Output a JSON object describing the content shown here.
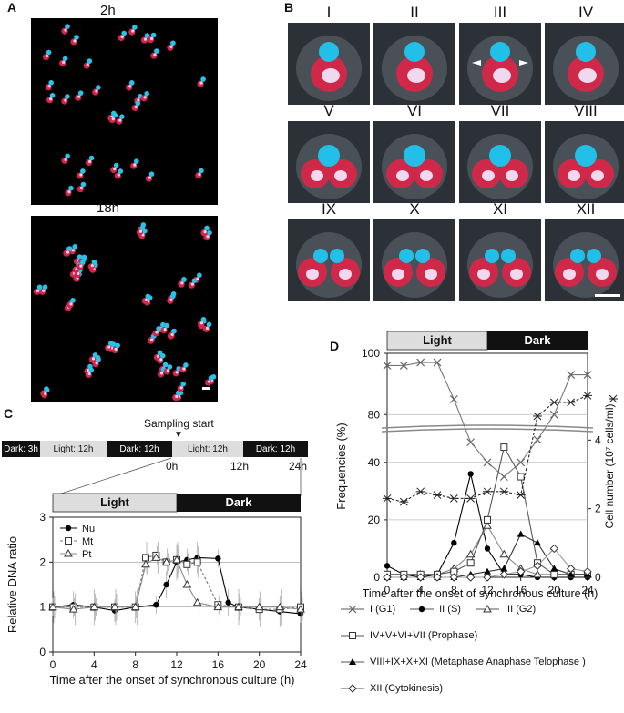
{
  "panels": {
    "a": {
      "label": "A",
      "top_title": "2h",
      "bottom_title": "18h"
    },
    "b": {
      "label": "B",
      "stages": [
        "I",
        "II",
        "III",
        "IV",
        "V",
        "VI",
        "VII",
        "VIII",
        "IX",
        "X",
        "XI",
        "XII"
      ]
    },
    "c": {
      "label": "C",
      "sampling_label": "Sampling start",
      "schedule": [
        "Dark: 3h",
        "Light: 12h",
        "Dark: 12h",
        "Light: 12h",
        "Dark: 12h"
      ],
      "time_marks": [
        "0h",
        "12h",
        "24h"
      ],
      "light_label": "Light",
      "dark_label": "Dark",
      "legend": [
        "Nu",
        "Mt",
        "Pt"
      ]
    },
    "d": {
      "label": "D",
      "light_label": "Light",
      "dark_label": "Dark",
      "legend": [
        {
          "symbol": "I",
          "desc": "(G1)"
        },
        {
          "symbol": "II",
          "desc": "(S)"
        },
        {
          "symbol": "III",
          "desc": "(G2)"
        },
        {
          "symbol": "IV+V+VI+VII",
          "desc": "(Prophase)"
        },
        {
          "symbol": "VIII+IX+X+XI",
          "desc": "(Metaphase Anaphase Telophase )"
        },
        {
          "symbol": "XII",
          "desc": "(Cytokinesis)"
        }
      ]
    }
  },
  "chart_data": [
    {
      "type": "line",
      "ylabel": "Relative DNA ratio",
      "xlabel": "Time after the onset of synchronous culture (h)",
      "xlim": [
        0,
        24
      ],
      "ylim": [
        0,
        3
      ],
      "xticks": [
        0,
        4,
        8,
        12,
        16,
        20,
        24
      ],
      "yticks": [
        0,
        1,
        2,
        3
      ],
      "grid": "horizontal at 1 and 2",
      "series": [
        {
          "name": "Nu",
          "marker": "filled-circle",
          "x": [
            0,
            2,
            4,
            6,
            8,
            10,
            11,
            12,
            13,
            14,
            16,
            17,
            18,
            20,
            22,
            24
          ],
          "y": [
            1.0,
            1.05,
            1.0,
            0.92,
            1.0,
            1.05,
            1.5,
            2.0,
            2.05,
            2.1,
            2.08,
            1.1,
            1.0,
            0.95,
            0.9,
            0.85
          ]
        },
        {
          "name": "Mt",
          "marker": "open-square",
          "x": [
            0,
            2,
            4,
            6,
            8,
            9,
            10,
            11,
            12,
            13,
            14,
            16,
            18,
            20,
            22,
            24
          ],
          "y": [
            1.0,
            1.0,
            1.0,
            1.0,
            1.0,
            2.1,
            2.15,
            2.0,
            2.05,
            1.95,
            2.0,
            1.05,
            1.0,
            0.95,
            0.95,
            1.0
          ]
        },
        {
          "name": "Pt",
          "marker": "open-triangle",
          "x": [
            0,
            2,
            4,
            6,
            8,
            9,
            10,
            11,
            12,
            13,
            14,
            16,
            18,
            20,
            22,
            24
          ],
          "y": [
            1.0,
            0.95,
            1.0,
            1.0,
            1.0,
            1.95,
            2.1,
            2.0,
            2.05,
            1.5,
            1.1,
            1.0,
            1.0,
            1.0,
            1.0,
            0.95
          ]
        }
      ]
    },
    {
      "type": "line",
      "ylabel": "Frequencies  (%)",
      "y2label": "Cell number (10⁷ cells/ml)",
      "xlabel": "Time after the onset of synchronous culture (h)",
      "xlim": [
        0,
        24
      ],
      "ylim": [
        0,
        100
      ],
      "y_break": [
        45,
        78
      ],
      "y2lim": [
        0,
        6
      ],
      "xticks": [
        0,
        4,
        8,
        12,
        16,
        20,
        24
      ],
      "yticks": [
        0,
        20,
        40,
        80,
        100
      ],
      "y2ticks": [
        0,
        2,
        4
      ],
      "series": [
        {
          "name": "I",
          "marker": "cross",
          "x": [
            0,
            2,
            4,
            6,
            8,
            10,
            12,
            14,
            16,
            18,
            20,
            22,
            24
          ],
          "y": [
            96,
            96,
            97,
            97,
            85,
            52,
            40,
            35,
            40,
            55,
            80,
            93,
            93
          ]
        },
        {
          "name": "II",
          "marker": "filled-circle",
          "x": [
            0,
            2,
            4,
            6,
            8,
            10,
            12,
            14,
            16,
            18,
            20,
            22,
            24
          ],
          "y": [
            4,
            1,
            0,
            1,
            12,
            36,
            10,
            1,
            1,
            0,
            0,
            0,
            0
          ]
        },
        {
          "name": "III",
          "marker": "open-triangle",
          "x": [
            0,
            2,
            4,
            6,
            8,
            10,
            12,
            14,
            16,
            18,
            20,
            22,
            24
          ],
          "y": [
            1,
            1,
            1,
            1,
            3,
            8,
            18,
            8,
            3,
            1,
            1,
            1,
            1
          ]
        },
        {
          "name": "IV+V+VI+VII",
          "marker": "open-square",
          "x": [
            0,
            2,
            4,
            6,
            8,
            10,
            12,
            14,
            16,
            18,
            20,
            22,
            24
          ],
          "y": [
            1,
            1,
            1,
            1,
            2,
            5,
            20,
            46,
            35,
            5,
            1,
            1,
            1
          ]
        },
        {
          "name": "VIII+IX+X+XI",
          "marker": "filled-triangle",
          "x": [
            0,
            2,
            4,
            6,
            8,
            10,
            12,
            14,
            16,
            18,
            20,
            22,
            24
          ],
          "y": [
            0,
            0,
            0,
            0,
            0,
            1,
            2,
            3,
            15,
            12,
            3,
            1,
            1
          ]
        },
        {
          "name": "XII",
          "marker": "open-diamond",
          "x": [
            0,
            2,
            4,
            6,
            8,
            10,
            12,
            14,
            16,
            18,
            20,
            22,
            24
          ],
          "y": [
            0,
            0,
            0,
            0,
            0,
            0,
            0,
            1,
            2,
            4,
            10,
            3,
            2
          ]
        },
        {
          "name": "Cell number",
          "axis": "right",
          "marker": "asterisk",
          "dashed": true,
          "x": [
            0,
            2,
            4,
            6,
            8,
            10,
            12,
            14,
            16,
            18,
            20,
            22,
            24
          ],
          "y": [
            2.3,
            2.2,
            2.5,
            2.4,
            2.3,
            2.3,
            2.5,
            2.5,
            2.4,
            4.7,
            5.1,
            5.1,
            5.3
          ]
        }
      ]
    }
  ]
}
